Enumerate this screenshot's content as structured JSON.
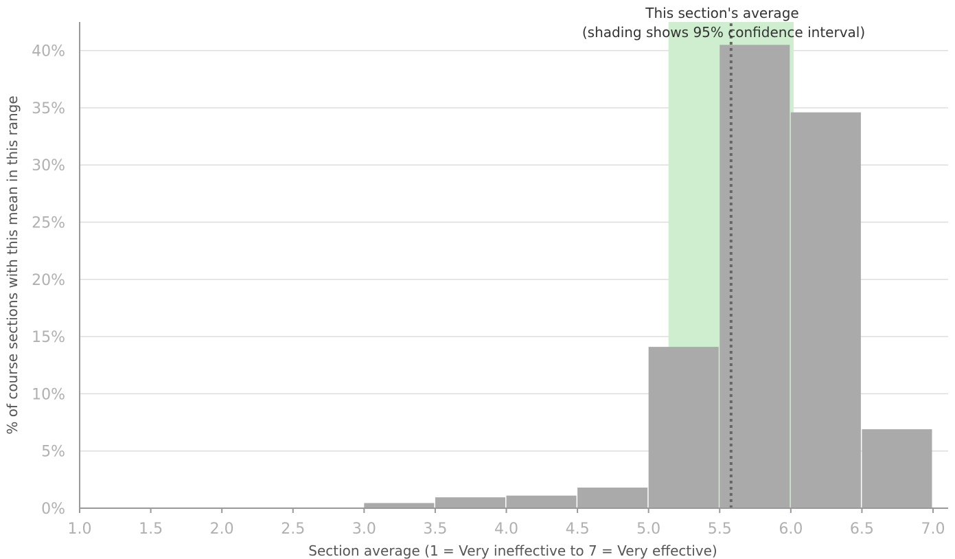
{
  "chart_data": {
    "type": "bar",
    "xlabel": "Section average (1 = Very ineffective to 7 = Very effective)",
    "ylabel": "% of course sections with this mean in this range",
    "xlim": [
      1.0,
      7.0
    ],
    "ylim": [
      0,
      42.5
    ],
    "x_ticks": [
      "1.0",
      "1.5",
      "2.0",
      "2.5",
      "3.0",
      "3.5",
      "4.0",
      "4.5",
      "5.0",
      "5.5",
      "6.0",
      "6.5",
      "7.0"
    ],
    "y_ticks": [
      "0%",
      "5%",
      "10%",
      "15%",
      "20%",
      "25%",
      "30%",
      "35%",
      "40%"
    ],
    "bins": [
      {
        "from": 3.0,
        "to": 3.5,
        "value": 0.45
      },
      {
        "from": 3.5,
        "to": 4.0,
        "value": 0.95
      },
      {
        "from": 4.0,
        "to": 4.5,
        "value": 1.1
      },
      {
        "from": 4.5,
        "to": 5.0,
        "value": 1.8
      },
      {
        "from": 5.0,
        "to": 5.5,
        "value": 14.1
      },
      {
        "from": 5.5,
        "to": 6.0,
        "value": 40.5
      },
      {
        "from": 6.0,
        "to": 6.5,
        "value": 34.6
      },
      {
        "from": 6.5,
        "to": 7.0,
        "value": 6.9
      }
    ],
    "section_average": 5.58,
    "confidence_interval": [
      5.14,
      6.02
    ],
    "annotation": [
      "This section's average",
      "(shading shows 95% confidence interval)"
    ],
    "grid": true,
    "colors": {
      "bar": "#aaaaaa",
      "ci_band": "#cfeecf",
      "mean_line": "#666666",
      "grid": "#dddddd",
      "axis": "#999999"
    }
  }
}
